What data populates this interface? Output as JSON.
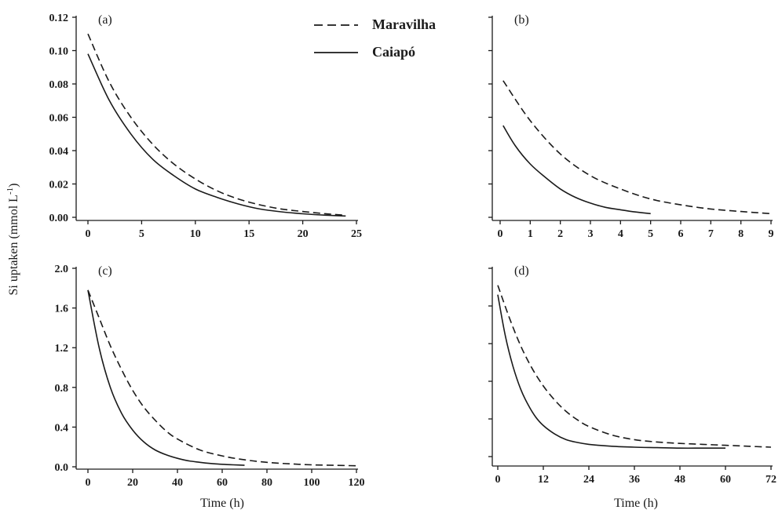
{
  "figure": {
    "ylabel": "Si uptaken (mmol L",
    "ylabel_sup": "-1",
    "ylabel_close": ")",
    "xlabel_bottom_left": "Time (h)",
    "xlabel_bottom_right": "Time (h)"
  },
  "legend": [
    {
      "name": "Maravilha",
      "dash": "dashed"
    },
    {
      "name": "Caiapó",
      "dash": "solid"
    }
  ],
  "chart_data": [
    {
      "panel": "(a)",
      "type": "line",
      "xlim": [
        0,
        25
      ],
      "ylim": [
        0,
        0.12
      ],
      "xticks": [
        0,
        5,
        10,
        15,
        20,
        25
      ],
      "xtick_labels": [
        "0",
        "5",
        "10",
        "15",
        "20",
        "25"
      ],
      "yticks": [
        0,
        0.02,
        0.04,
        0.06,
        0.08,
        0.1,
        0.12
      ],
      "ytick_labels": [
        "0.00",
        "0.02",
        "0.04",
        "0.06",
        "0.08",
        "0.10",
        "0.12"
      ],
      "series": [
        {
          "name": "Maravilha",
          "style": "dashed",
          "x": [
            0,
            2,
            4,
            6,
            8,
            10,
            12,
            14,
            16,
            18,
            20,
            22,
            24
          ],
          "y": [
            0.11,
            0.081,
            0.06,
            0.044,
            0.032,
            0.023,
            0.016,
            0.011,
            0.0075,
            0.005,
            0.0035,
            0.0022,
            0.0012
          ]
        },
        {
          "name": "Caiapó",
          "style": "solid",
          "x": [
            0,
            2,
            4,
            6,
            8,
            10,
            12,
            14,
            16,
            18,
            20,
            22,
            24
          ],
          "y": [
            0.098,
            0.07,
            0.05,
            0.035,
            0.025,
            0.017,
            0.012,
            0.008,
            0.005,
            0.0033,
            0.0021,
            0.0013,
            0.0008
          ]
        }
      ]
    },
    {
      "panel": "(b)",
      "type": "line",
      "xlim": [
        0,
        9
      ],
      "ylim": [
        0,
        0.12
      ],
      "xticks": [
        0,
        1,
        2,
        3,
        4,
        5,
        6,
        7,
        8,
        9
      ],
      "xtick_labels": [
        "0",
        "1",
        "2",
        "3",
        "4",
        "5",
        "6",
        "7",
        "8",
        "9"
      ],
      "yticks": [
        0,
        0.02,
        0.04,
        0.06,
        0.08,
        0.1,
        0.12
      ],
      "ytick_labels": [],
      "series": [
        {
          "name": "Maravilha",
          "style": "dashed",
          "x": [
            0.1,
            1,
            2,
            3,
            4,
            5,
            6,
            7,
            8,
            9
          ],
          "y": [
            0.082,
            0.058,
            0.038,
            0.025,
            0.017,
            0.011,
            0.0075,
            0.005,
            0.0035,
            0.0022
          ]
        },
        {
          "name": "Caiapó",
          "style": "solid",
          "x": [
            0.1,
            0.5,
            1,
            1.5,
            2,
            2.5,
            3,
            3.5,
            4,
            4.5,
            5
          ],
          "y": [
            0.055,
            0.043,
            0.032,
            0.024,
            0.017,
            0.012,
            0.0085,
            0.006,
            0.0045,
            0.0032,
            0.0022
          ]
        }
      ]
    },
    {
      "panel": "(c)",
      "type": "line",
      "xlim": [
        0,
        120
      ],
      "ylim": [
        0,
        2.0
      ],
      "xticks": [
        0,
        20,
        40,
        60,
        80,
        100,
        120
      ],
      "xtick_labels": [
        "0",
        "20",
        "40",
        "60",
        "80",
        "100",
        "120"
      ],
      "yticks": [
        0,
        0.4,
        0.8,
        1.2,
        1.6,
        2.0
      ],
      "ytick_labels": [
        "0.0",
        "0.4",
        "0.8",
        "1.2",
        "1.6",
        "2.0"
      ],
      "series": [
        {
          "name": "Maravilha",
          "style": "dashed",
          "x": [
            0,
            5,
            10,
            15,
            20,
            25,
            30,
            35,
            40,
            50,
            60,
            70,
            80,
            90,
            100,
            110,
            120
          ],
          "y": [
            1.78,
            1.5,
            1.22,
            0.98,
            0.77,
            0.6,
            0.47,
            0.36,
            0.28,
            0.17,
            0.11,
            0.07,
            0.045,
            0.03,
            0.02,
            0.015,
            0.01
          ]
        },
        {
          "name": "Caiapó",
          "style": "solid",
          "x": [
            0,
            5,
            10,
            15,
            20,
            25,
            30,
            35,
            40,
            45,
            50,
            55,
            60,
            65,
            70
          ],
          "y": [
            1.78,
            1.2,
            0.8,
            0.54,
            0.37,
            0.25,
            0.17,
            0.12,
            0.085,
            0.06,
            0.045,
            0.033,
            0.025,
            0.02,
            0.015
          ]
        }
      ]
    },
    {
      "panel": "(d)",
      "type": "line",
      "xlim": [
        0,
        72
      ],
      "ylim": [
        0,
        2.0
      ],
      "xticks": [
        0,
        12,
        24,
        36,
        48,
        60,
        72
      ],
      "xtick_labels": [
        "0",
        "12",
        "24",
        "36",
        "48",
        "60",
        "72"
      ],
      "yticks": [
        0,
        0.4,
        0.8,
        1.2,
        1.6,
        2.0
      ],
      "ytick_labels": [],
      "series": [
        {
          "name": "Maravilha",
          "style": "dashed",
          "x": [
            0,
            3,
            6,
            9,
            12,
            15,
            18,
            21,
            24,
            30,
            36,
            42,
            48,
            54,
            60,
            66,
            72
          ],
          "y": [
            1.82,
            1.48,
            1.18,
            0.94,
            0.75,
            0.6,
            0.48,
            0.39,
            0.32,
            0.23,
            0.18,
            0.155,
            0.14,
            0.13,
            0.12,
            0.11,
            0.1
          ]
        },
        {
          "name": "Caiapó",
          "style": "solid",
          "x": [
            0,
            2,
            4,
            6,
            8,
            10,
            12,
            15,
            18,
            21,
            24,
            30,
            36,
            42,
            48,
            54,
            60
          ],
          "y": [
            1.72,
            1.28,
            0.96,
            0.72,
            0.55,
            0.42,
            0.33,
            0.24,
            0.18,
            0.15,
            0.13,
            0.11,
            0.1,
            0.095,
            0.09,
            0.09,
            0.09
          ]
        }
      ]
    }
  ]
}
